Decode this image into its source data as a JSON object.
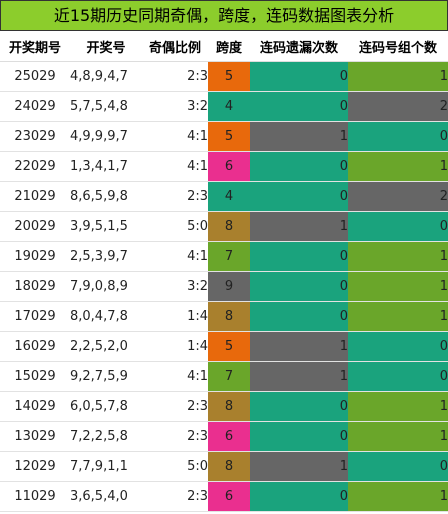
{
  "title": "近15期历史同期奇偶，跨度，连码数据图表分析",
  "headers": [
    "开奖期号",
    "开奖号",
    "奇偶比例",
    "跨度",
    "连码遗漏次数",
    "连码号组个数"
  ],
  "colors": {
    "title_bg": "#8ccd2c",
    "span": {
      "4": "#1aa37d",
      "5": "#e8690c",
      "6": "#ea2f8f",
      "7": "#6aa62a",
      "8": "#a9802d",
      "9": "#666666"
    },
    "miss": {
      "0": "#1aa37d",
      "1": "#666666"
    },
    "group": {
      "0": "#1aa37d",
      "1": "#6aa62a",
      "2": "#666666"
    }
  },
  "chart_data": {
    "type": "table",
    "columns": [
      "开奖期号",
      "开奖号",
      "奇偶比例",
      "跨度",
      "连码遗漏次数",
      "连码号组个数"
    ],
    "rows": [
      {
        "issue": "25029",
        "nums": "4,8,9,4,7",
        "ratio": "2:3",
        "span": 5,
        "miss": 0,
        "group": 1
      },
      {
        "issue": "24029",
        "nums": "5,7,5,4,8",
        "ratio": "3:2",
        "span": 4,
        "miss": 0,
        "group": 2
      },
      {
        "issue": "23029",
        "nums": "4,9,9,9,7",
        "ratio": "4:1",
        "span": 5,
        "miss": 1,
        "group": 0
      },
      {
        "issue": "22029",
        "nums": "1,3,4,1,7",
        "ratio": "4:1",
        "span": 6,
        "miss": 0,
        "group": 1
      },
      {
        "issue": "21029",
        "nums": "8,6,5,9,8",
        "ratio": "2:3",
        "span": 4,
        "miss": 0,
        "group": 2
      },
      {
        "issue": "20029",
        "nums": "3,9,5,1,5",
        "ratio": "5:0",
        "span": 8,
        "miss": 1,
        "group": 0
      },
      {
        "issue": "19029",
        "nums": "2,5,3,9,7",
        "ratio": "4:1",
        "span": 7,
        "miss": 0,
        "group": 1
      },
      {
        "issue": "18029",
        "nums": "7,9,0,8,9",
        "ratio": "3:2",
        "span": 9,
        "miss": 0,
        "group": 1
      },
      {
        "issue": "17029",
        "nums": "8,0,4,7,8",
        "ratio": "1:4",
        "span": 8,
        "miss": 0,
        "group": 1
      },
      {
        "issue": "16029",
        "nums": "2,2,5,2,0",
        "ratio": "1:4",
        "span": 5,
        "miss": 1,
        "group": 0
      },
      {
        "issue": "15029",
        "nums": "9,2,7,5,9",
        "ratio": "4:1",
        "span": 7,
        "miss": 1,
        "group": 0
      },
      {
        "issue": "14029",
        "nums": "6,0,5,7,8",
        "ratio": "2:3",
        "span": 8,
        "miss": 0,
        "group": 1
      },
      {
        "issue": "13029",
        "nums": "7,2,2,5,8",
        "ratio": "2:3",
        "span": 6,
        "miss": 0,
        "group": 1
      },
      {
        "issue": "12029",
        "nums": "7,7,9,1,1",
        "ratio": "5:0",
        "span": 8,
        "miss": 1,
        "group": 0
      },
      {
        "issue": "11029",
        "nums": "3,6,5,4,0",
        "ratio": "2:3",
        "span": 6,
        "miss": 0,
        "group": 1
      }
    ]
  }
}
